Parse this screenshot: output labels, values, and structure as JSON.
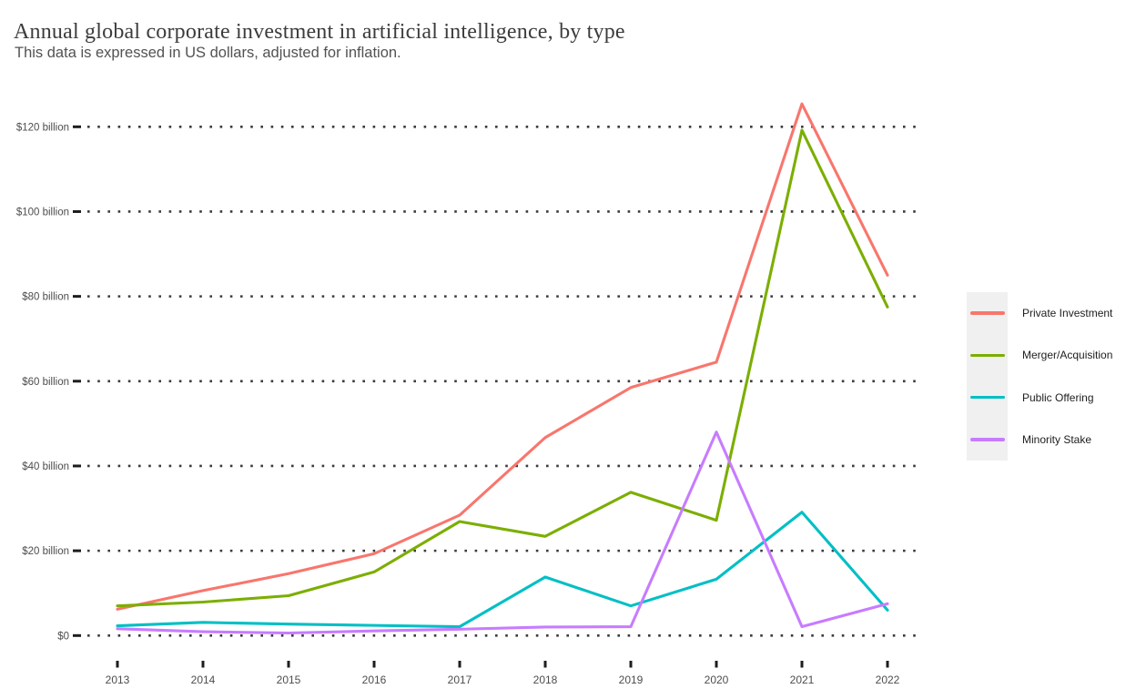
{
  "page": {
    "title": "Annual global corporate investment in artificial intelligence, by type",
    "subtitle": "This data is expressed in US dollars, adjusted for inflation."
  },
  "chart_data": {
    "type": "line",
    "unit": "US$ billion",
    "x": [
      2013,
      2014,
      2015,
      2016,
      2017,
      2018,
      2019,
      2020,
      2021,
      2022
    ],
    "series": [
      {
        "name": "Private Investment",
        "color": "#F8766D",
        "values": [
          6.2,
          10.6,
          14.6,
          19.3,
          28.4,
          46.7,
          58.5,
          64.5,
          125.4,
          85.0
        ]
      },
      {
        "name": "Merger/Acquisition",
        "color": "#7CAE00",
        "values": [
          7.0,
          7.9,
          9.4,
          15.0,
          26.9,
          23.4,
          33.8,
          27.2,
          119.2,
          77.5
        ]
      },
      {
        "name": "Public Offering",
        "color": "#00BFC4",
        "values": [
          2.3,
          3.1,
          2.7,
          2.4,
          2.1,
          13.8,
          7.0,
          13.3,
          29.1,
          6.0
        ]
      },
      {
        "name": "Minority Stake",
        "color": "#C77CFF",
        "values": [
          1.6,
          0.9,
          0.6,
          1.1,
          1.5,
          2.0,
          2.1,
          48.0,
          2.1,
          7.5
        ]
      }
    ],
    "yticks": [
      {
        "value": 0,
        "label": "$0"
      },
      {
        "value": 20,
        "label": "$20 billion"
      },
      {
        "value": 40,
        "label": "$40 billion"
      },
      {
        "value": 60,
        "label": "$60 billion"
      },
      {
        "value": 80,
        "label": "$80 billion"
      },
      {
        "value": 100,
        "label": "$100 billion"
      },
      {
        "value": 120,
        "label": "$120 billion"
      }
    ],
    "ylim": [
      0,
      130
    ],
    "grid": "horizontal-dotted",
    "legend_position": "right",
    "colors": {
      "grid_dots": "#3b3b3b",
      "axis_ticks": "#1d1d1d",
      "axis_labels": "#4d4d4d",
      "legend_key_bg": "#f0f0f0"
    }
  }
}
